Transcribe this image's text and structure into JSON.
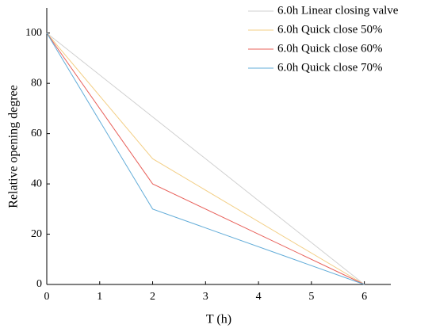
{
  "chart_data": {
    "type": "line",
    "xlabel": "T (h)",
    "ylabel": "Relative opening degree",
    "xlim": [
      0,
      6.5
    ],
    "xticks": [
      0,
      1,
      2,
      3,
      4,
      5,
      6
    ],
    "ylim": [
      0,
      110
    ],
    "yticks": [
      0,
      20,
      40,
      60,
      80,
      100
    ],
    "legend": "top-right",
    "series": [
      {
        "name": "6.0h Linear closing valve",
        "color": "#d0d0d0",
        "x": [
          0,
          6
        ],
        "values": [
          100,
          0
        ]
      },
      {
        "name": "6.0h Quick close 50%",
        "color": "#f3cf86",
        "x": [
          0,
          2,
          6
        ],
        "values": [
          100,
          50,
          0
        ]
      },
      {
        "name": "6.0h Quick close 60%",
        "color": "#e8605a",
        "x": [
          0,
          2,
          6
        ],
        "values": [
          100,
          40,
          0
        ]
      },
      {
        "name": "6.0h Quick close 70%",
        "color": "#62acd8",
        "x": [
          0,
          2,
          6
        ],
        "values": [
          100,
          30,
          0
        ]
      }
    ]
  }
}
